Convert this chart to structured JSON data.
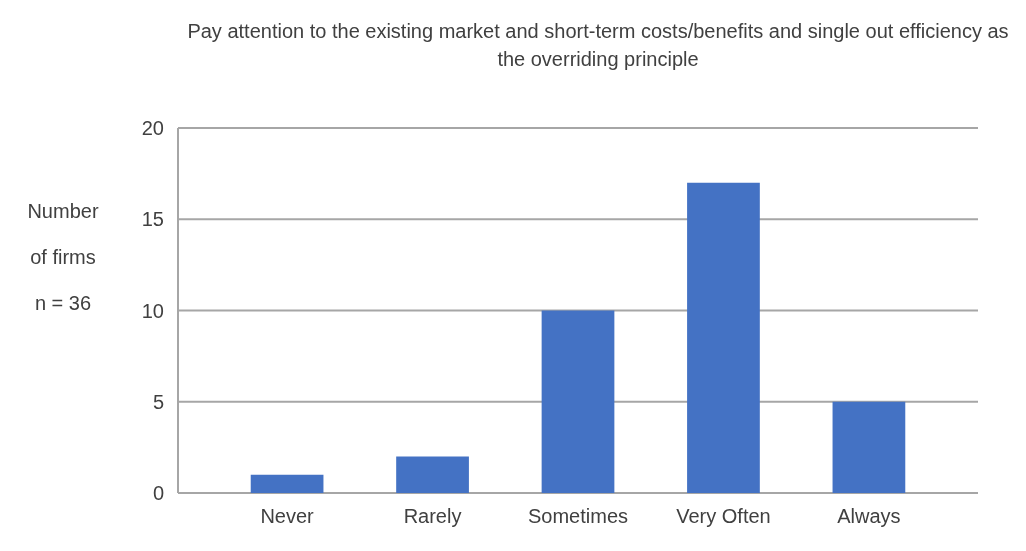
{
  "chart_data": {
    "type": "bar",
    "title": "Pay attention to the existing market and short-term costs/benefits and single out efficiency as the overriding principle",
    "ylabel": "Number\nof firms\nn = 36",
    "categories": [
      "Never",
      "Rarely",
      "Sometimes",
      "Very Often",
      "Always"
    ],
    "values": [
      1,
      2,
      10,
      17,
      5
    ],
    "color": "#4472c4",
    "ylim": [
      0,
      20
    ],
    "yticks": [
      0,
      5,
      10,
      15,
      20
    ],
    "grid": "y"
  }
}
